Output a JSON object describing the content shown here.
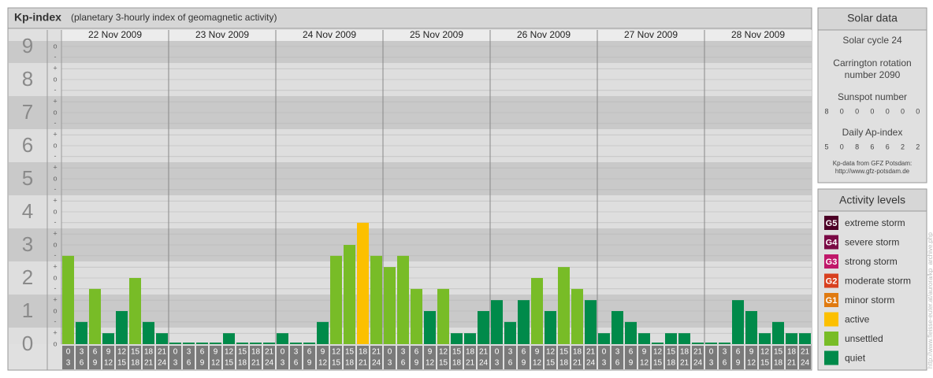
{
  "chart_data": {
    "type": "bar",
    "title": "Kp-index",
    "subtitle": "(planetary 3-hourly index of geomagnetic activity)",
    "ylim": [
      0,
      9
    ],
    "yticks": [
      0,
      1,
      2,
      3,
      4,
      5,
      6,
      7,
      8,
      9
    ],
    "minor_ticks": [
      {
        "value": 0,
        "label": "o"
      },
      {
        "value": 0.33,
        "label": "+"
      },
      {
        "value": 0.67,
        "label": "-"
      },
      {
        "value": 1,
        "label": "o"
      },
      {
        "value": 1.33,
        "label": "+"
      },
      {
        "value": 1.67,
        "label": "-"
      },
      {
        "value": 2,
        "label": "o"
      },
      {
        "value": 2.33,
        "label": "+"
      },
      {
        "value": 2.67,
        "label": "-"
      },
      {
        "value": 3,
        "label": "o"
      },
      {
        "value": 3.33,
        "label": "+"
      },
      {
        "value": 3.67,
        "label": "-"
      },
      {
        "value": 4,
        "label": "o"
      },
      {
        "value": 4.33,
        "label": "+"
      },
      {
        "value": 4.67,
        "label": "-"
      },
      {
        "value": 5,
        "label": "o"
      },
      {
        "value": 5.33,
        "label": "+"
      },
      {
        "value": 5.67,
        "label": "-"
      },
      {
        "value": 6,
        "label": "o"
      },
      {
        "value": 6.33,
        "label": "+"
      },
      {
        "value": 6.67,
        "label": "-"
      },
      {
        "value": 7,
        "label": "o"
      },
      {
        "value": 7.33,
        "label": "+"
      },
      {
        "value": 7.67,
        "label": "-"
      },
      {
        "value": 8,
        "label": "o"
      },
      {
        "value": 8.33,
        "label": "+"
      },
      {
        "value": 8.67,
        "label": "-"
      },
      {
        "value": 9,
        "label": "o"
      }
    ],
    "intervals": [
      [
        0,
        3
      ],
      [
        3,
        6
      ],
      [
        6,
        9
      ],
      [
        9,
        12
      ],
      [
        12,
        15
      ],
      [
        15,
        18
      ],
      [
        18,
        21
      ],
      [
        21,
        24
      ]
    ],
    "days": [
      {
        "date": "22 Nov 2009",
        "values": [
          2.67,
          0.67,
          1.67,
          0.33,
          1,
          2,
          0.67,
          0.33
        ],
        "colors": [
          "#78bc27",
          "#008a4a",
          "#78bc27",
          "#008a4a",
          "#008a4a",
          "#78bc27",
          "#008a4a",
          "#008a4a"
        ]
      },
      {
        "date": "23 Nov 2009",
        "values": [
          0,
          0,
          0,
          0,
          0.33,
          0,
          0,
          0
        ],
        "colors": [
          "#008a4a",
          "#008a4a",
          "#008a4a",
          "#008a4a",
          "#008a4a",
          "#008a4a",
          "#008a4a",
          "#008a4a"
        ]
      },
      {
        "date": "24 Nov 2009",
        "values": [
          0.33,
          0,
          0,
          0.67,
          2.67,
          3,
          3.67,
          2.67
        ],
        "colors": [
          "#008a4a",
          "#008a4a",
          "#008a4a",
          "#008a4a",
          "#78bc27",
          "#78bc27",
          "#fcc000",
          "#78bc27"
        ]
      },
      {
        "date": "25 Nov 2009",
        "values": [
          2.33,
          2.67,
          1.67,
          1,
          1.67,
          0.33,
          0.33,
          1
        ],
        "colors": [
          "#78bc27",
          "#78bc27",
          "#78bc27",
          "#008a4a",
          "#78bc27",
          "#008a4a",
          "#008a4a",
          "#008a4a"
        ]
      },
      {
        "date": "26 Nov 2009",
        "values": [
          1.33,
          0.67,
          1.33,
          2,
          1,
          2.33,
          1.67,
          1.33
        ],
        "colors": [
          "#008a4a",
          "#008a4a",
          "#008a4a",
          "#78bc27",
          "#008a4a",
          "#78bc27",
          "#78bc27",
          "#008a4a"
        ]
      },
      {
        "date": "27 Nov 2009",
        "values": [
          0.33,
          1,
          0.67,
          0.33,
          0,
          0.33,
          0.33,
          0
        ],
        "colors": [
          "#008a4a",
          "#008a4a",
          "#008a4a",
          "#008a4a",
          "#008a4a",
          "#008a4a",
          "#008a4a",
          "#008a4a"
        ]
      },
      {
        "date": "28 Nov 2009",
        "values": [
          0,
          0,
          1.33,
          1,
          0.33,
          0.67,
          0.33,
          0.33
        ],
        "colors": [
          "#008a4a",
          "#008a4a",
          "#008a4a",
          "#008a4a",
          "#008a4a",
          "#008a4a",
          "#008a4a",
          "#008a4a"
        ]
      }
    ]
  },
  "sidebar": {
    "solar_data": {
      "title": "Solar data",
      "cycle": "Solar cycle 24",
      "carrington": [
        "Carrington rotation",
        "number 2090"
      ],
      "sunspot_title": "Sunspot number",
      "sunspot_values": [
        8,
        0,
        0,
        0,
        0,
        0,
        0
      ],
      "ap_title": "Daily Ap-index",
      "ap_values": [
        5,
        0,
        8,
        6,
        6,
        2,
        2
      ],
      "source": [
        "Kp-data from GFZ Potsdam:",
        "http://www.gfz-potsdam.de"
      ]
    },
    "activity_levels": {
      "title": "Activity levels",
      "items": [
        {
          "badge": "G5",
          "label": "extreme storm",
          "color": "#4d0026"
        },
        {
          "badge": "G4",
          "label": "severe storm",
          "color": "#7a0a45"
        },
        {
          "badge": "G3",
          "label": "strong storm",
          "color": "#c0186a"
        },
        {
          "badge": "G2",
          "label": "moderate storm",
          "color": "#d8401f"
        },
        {
          "badge": "G1",
          "label": "minor storm",
          "color": "#e07a10"
        },
        {
          "label": "active",
          "color": "#fcc000"
        },
        {
          "label": "unsettled",
          "color": "#78bc27"
        },
        {
          "label": "quiet",
          "color": "#008a4a"
        }
      ]
    },
    "credit": "http://www.fleisse-euter.at/aurora/kp_archive.php"
  }
}
